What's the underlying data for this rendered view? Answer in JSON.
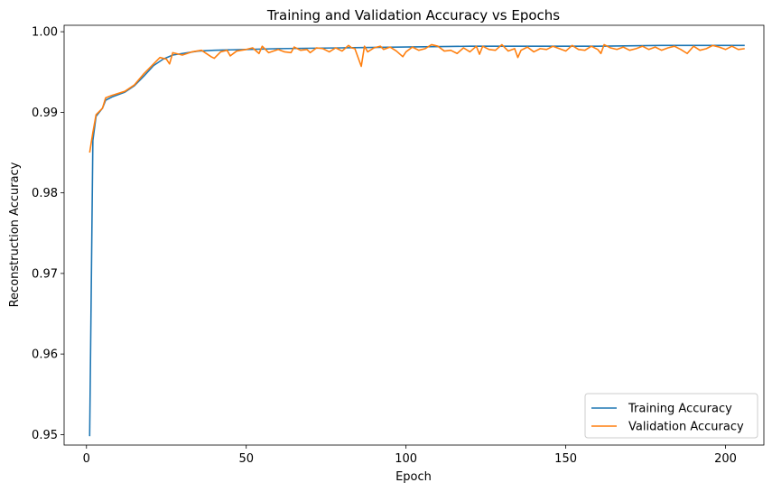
{
  "chart_data": {
    "type": "line",
    "title": "Training and Validation Accuracy vs Epochs",
    "xlabel": "Epoch",
    "ylabel": "Reconstruction Accuracy",
    "xlim": [
      -7,
      212
    ],
    "ylim": [
      0.9487,
      1.0008
    ],
    "xticks": [
      0,
      50,
      100,
      150,
      200
    ],
    "yticks": [
      0.95,
      0.96,
      0.97,
      0.98,
      0.99,
      1.0
    ],
    "ytick_labels": [
      "0.95",
      "0.96",
      "0.97",
      "0.98",
      "0.99",
      "1.00"
    ],
    "grid": false,
    "legend_position": "lower right",
    "series": [
      {
        "name": "Training Accuracy",
        "color": "#1f77b4",
        "points": [
          [
            1,
            0.9498
          ],
          [
            2,
            0.9865
          ],
          [
            3,
            0.9895
          ],
          [
            5,
            0.9905
          ],
          [
            6,
            0.9915
          ],
          [
            8,
            0.9919
          ],
          [
            12,
            0.9925
          ],
          [
            15,
            0.9933
          ],
          [
            18,
            0.9945
          ],
          [
            21,
            0.9958
          ],
          [
            24,
            0.9966
          ],
          [
            27,
            0.9971
          ],
          [
            30,
            0.9973
          ],
          [
            35,
            0.9976
          ],
          [
            40,
            0.9977
          ],
          [
            50,
            0.9978
          ],
          [
            60,
            0.9979
          ],
          [
            80,
            0.998
          ],
          [
            100,
            0.9981
          ],
          [
            120,
            0.9982
          ],
          [
            140,
            0.9982
          ],
          [
            160,
            0.9982
          ],
          [
            180,
            0.9983
          ],
          [
            200,
            0.9983
          ],
          [
            206,
            0.9983
          ]
        ]
      },
      {
        "name": "Validation Accuracy",
        "color": "#ff7f0e",
        "points": [
          [
            1,
            0.985
          ],
          [
            2,
            0.9875
          ],
          [
            3,
            0.9897
          ],
          [
            5,
            0.9905
          ],
          [
            6,
            0.9918
          ],
          [
            8,
            0.9921
          ],
          [
            12,
            0.9926
          ],
          [
            15,
            0.9934
          ],
          [
            18,
            0.9948
          ],
          [
            21,
            0.996
          ],
          [
            23,
            0.9968
          ],
          [
            25,
            0.9966
          ],
          [
            26,
            0.996
          ],
          [
            27,
            0.9974
          ],
          [
            30,
            0.9971
          ],
          [
            33,
            0.9975
          ],
          [
            36,
            0.9977
          ],
          [
            39,
            0.9969
          ],
          [
            40,
            0.9967
          ],
          [
            42,
            0.9975
          ],
          [
            44,
            0.9977
          ],
          [
            45,
            0.997
          ],
          [
            47,
            0.9976
          ],
          [
            50,
            0.9978
          ],
          [
            52,
            0.998
          ],
          [
            54,
            0.9973
          ],
          [
            55,
            0.9982
          ],
          [
            57,
            0.9974
          ],
          [
            60,
            0.9978
          ],
          [
            62,
            0.9975
          ],
          [
            64,
            0.9974
          ],
          [
            65,
            0.9981
          ],
          [
            67,
            0.9977
          ],
          [
            69,
            0.9978
          ],
          [
            70,
            0.9974
          ],
          [
            72,
            0.998
          ],
          [
            74,
            0.9979
          ],
          [
            76,
            0.9975
          ],
          [
            78,
            0.998
          ],
          [
            80,
            0.9976
          ],
          [
            82,
            0.9983
          ],
          [
            83,
            0.998
          ],
          [
            84,
            0.9979
          ],
          [
            86,
            0.9957
          ],
          [
            87,
            0.9982
          ],
          [
            88,
            0.9975
          ],
          [
            90,
            0.998
          ],
          [
            92,
            0.9982
          ],
          [
            93,
            0.9978
          ],
          [
            95,
            0.9981
          ],
          [
            97,
            0.9976
          ],
          [
            99,
            0.9969
          ],
          [
            100,
            0.9975
          ],
          [
            102,
            0.9981
          ],
          [
            104,
            0.9977
          ],
          [
            106,
            0.9979
          ],
          [
            108,
            0.9984
          ],
          [
            110,
            0.9982
          ],
          [
            112,
            0.9976
          ],
          [
            114,
            0.9977
          ],
          [
            116,
            0.9973
          ],
          [
            118,
            0.998
          ],
          [
            120,
            0.9975
          ],
          [
            122,
            0.9982
          ],
          [
            123,
            0.9972
          ],
          [
            124,
            0.9982
          ],
          [
            126,
            0.9978
          ],
          [
            128,
            0.9977
          ],
          [
            130,
            0.9984
          ],
          [
            132,
            0.9976
          ],
          [
            134,
            0.9979
          ],
          [
            135,
            0.9968
          ],
          [
            136,
            0.9977
          ],
          [
            138,
            0.9981
          ],
          [
            140,
            0.9975
          ],
          [
            142,
            0.9979
          ],
          [
            144,
            0.9978
          ],
          [
            146,
            0.9982
          ],
          [
            148,
            0.9979
          ],
          [
            150,
            0.9976
          ],
          [
            152,
            0.9983
          ],
          [
            154,
            0.9978
          ],
          [
            156,
            0.9977
          ],
          [
            158,
            0.9982
          ],
          [
            160,
            0.9978
          ],
          [
            161,
            0.9973
          ],
          [
            162,
            0.9984
          ],
          [
            164,
            0.998
          ],
          [
            166,
            0.9978
          ],
          [
            168,
            0.9981
          ],
          [
            170,
            0.9977
          ],
          [
            172,
            0.9979
          ],
          [
            174,
            0.9982
          ],
          [
            176,
            0.9978
          ],
          [
            178,
            0.9981
          ],
          [
            180,
            0.9977
          ],
          [
            182,
            0.998
          ],
          [
            184,
            0.9982
          ],
          [
            186,
            0.9978
          ],
          [
            188,
            0.9973
          ],
          [
            190,
            0.9982
          ],
          [
            192,
            0.9977
          ],
          [
            194,
            0.9979
          ],
          [
            196,
            0.9983
          ],
          [
            198,
            0.9981
          ],
          [
            200,
            0.9978
          ],
          [
            202,
            0.9982
          ],
          [
            204,
            0.9978
          ],
          [
            206,
            0.9979
          ]
        ]
      }
    ]
  }
}
